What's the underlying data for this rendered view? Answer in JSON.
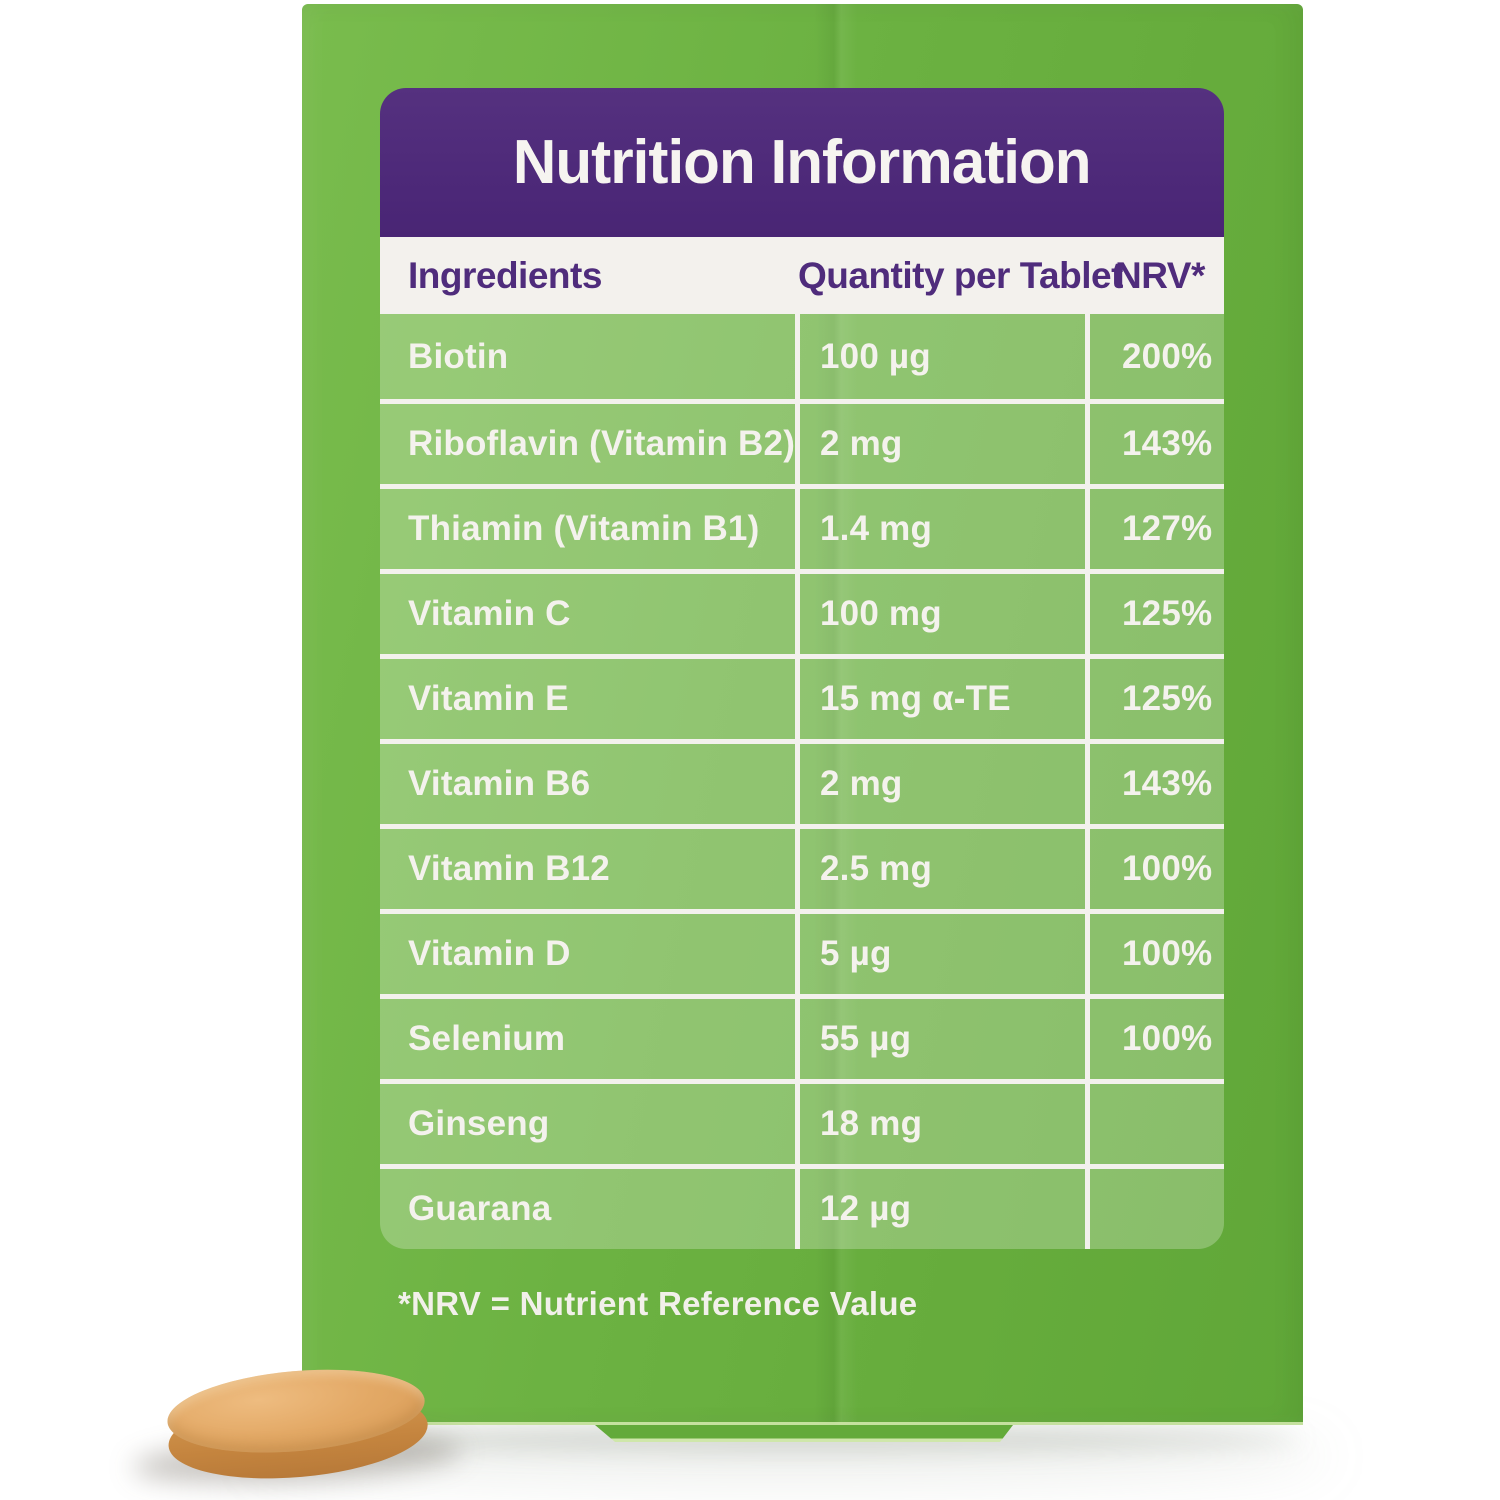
{
  "label": {
    "title": "Nutrition Information",
    "columns": {
      "ingredient": "Ingredients",
      "quantity": "Quantity per Tablet",
      "nrv": "NRV*"
    },
    "rows": [
      {
        "ingredient": "Biotin",
        "quantity": "100 µg",
        "nrv": "200%"
      },
      {
        "ingredient": "Riboflavin (Vitamin B2)",
        "quantity": "2 mg",
        "nrv": "143%"
      },
      {
        "ingredient": "Thiamin (Vitamin B1)",
        "quantity": "1.4 mg",
        "nrv": "127%"
      },
      {
        "ingredient": "Vitamin C",
        "quantity": "100 mg",
        "nrv": "125%"
      },
      {
        "ingredient": "Vitamin E",
        "quantity": "15 mg α-TE",
        "nrv": "125%"
      },
      {
        "ingredient": "Vitamin B6",
        "quantity": "2 mg",
        "nrv": "143%"
      },
      {
        "ingredient": "Vitamin B12",
        "quantity": "2.5 mg",
        "nrv": "100%"
      },
      {
        "ingredient": "Vitamin D",
        "quantity": "5 µg",
        "nrv": "100%"
      },
      {
        "ingredient": "Selenium",
        "quantity": "55 µg",
        "nrv": "100%"
      },
      {
        "ingredient": "Ginseng",
        "quantity": "18 mg",
        "nrv": ""
      },
      {
        "ingredient": "Guarana",
        "quantity": "12 µg",
        "nrv": ""
      }
    ],
    "footnote": "*NRV = Nutrient Reference Value"
  },
  "colors": {
    "package_green": "#6CB242",
    "package_green_light": "#79BC4D",
    "package_green_dark": "#60A738",
    "table_panel_green": "#8FC573",
    "header_purple": "#4C2878",
    "column_text_purple": "#4F2C7C",
    "off_white": "#F3F1ED",
    "gridline": "#F3F1ED",
    "pill_tan": "#E3A966",
    "pill_tan_dark": "#B87A39"
  },
  "objects": {
    "tablet": "oval tan supplement tablet"
  }
}
